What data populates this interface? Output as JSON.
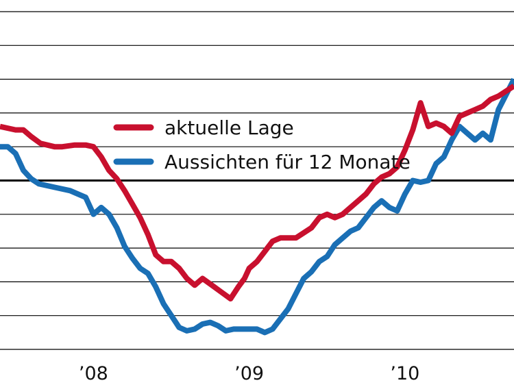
{
  "chart_data": {
    "type": "line",
    "title": "",
    "xlabel": "",
    "ylabel": "",
    "x_tick_labels": [
      "’08",
      "’09",
      "’10"
    ],
    "x_tick_positions": [
      2008.0,
      2009.0,
      2010.0
    ],
    "xlim": [
      2007.4,
      2010.7
    ],
    "ylim": [
      0,
      10
    ],
    "grid": true,
    "reference_line": 5,
    "legend": {
      "placement": "top-center"
    },
    "colors": {
      "aktuelle_lage": "#c8102e",
      "aussichten": "#1a6fb5",
      "grid": "#000000",
      "text": "#111111"
    },
    "series": [
      {
        "name": "aktuelle Lage",
        "key": "aktuelle_lage",
        "x": [
          2007.4,
          2007.5,
          2007.55,
          2007.6,
          2007.66,
          2007.75,
          2007.8,
          2007.88,
          2007.95,
          2008.0,
          2008.05,
          2008.1,
          2008.15,
          2008.2,
          2008.25,
          2008.3,
          2008.35,
          2008.4,
          2008.45,
          2008.5,
          2008.55,
          2008.6,
          2008.65,
          2008.7,
          2008.76,
          2008.82,
          2008.88,
          2008.93,
          2008.97,
          2009.0,
          2009.05,
          2009.1,
          2009.15,
          2009.2,
          2009.25,
          2009.3,
          2009.35,
          2009.4,
          2009.45,
          2009.5,
          2009.55,
          2009.6,
          2009.65,
          2009.7,
          2009.75,
          2009.8,
          2009.85,
          2009.9,
          2009.95,
          2010.0,
          2010.05,
          2010.1,
          2010.15,
          2010.2,
          2010.25,
          2010.3,
          2010.35,
          2010.4,
          2010.45,
          2010.5,
          2010.55,
          2010.6,
          2010.7
        ],
        "values": [
          6.6,
          6.5,
          6.5,
          6.3,
          6.1,
          6.0,
          6.0,
          6.05,
          6.05,
          6.0,
          5.7,
          5.3,
          5.05,
          4.7,
          4.3,
          3.9,
          3.4,
          2.8,
          2.6,
          2.6,
          2.4,
          2.1,
          1.9,
          2.1,
          1.9,
          1.7,
          1.5,
          1.85,
          2.1,
          2.4,
          2.6,
          2.9,
          3.2,
          3.3,
          3.3,
          3.3,
          3.45,
          3.6,
          3.9,
          4.0,
          3.9,
          4.0,
          4.2,
          4.4,
          4.6,
          4.9,
          5.1,
          5.2,
          5.4,
          5.9,
          6.5,
          7.3,
          6.6,
          6.7,
          6.6,
          6.4,
          6.9,
          7.0,
          7.1,
          7.2,
          7.4,
          7.5,
          7.8
        ]
      },
      {
        "name": "Aussichten für 12 Monate",
        "key": "aussichten",
        "x": [
          2007.4,
          2007.45,
          2007.5,
          2007.55,
          2007.6,
          2007.65,
          2007.75,
          2007.85,
          2007.9,
          2007.95,
          2008.0,
          2008.05,
          2008.1,
          2008.15,
          2008.2,
          2008.25,
          2008.3,
          2008.35,
          2008.4,
          2008.45,
          2008.5,
          2008.55,
          2008.6,
          2008.65,
          2008.7,
          2008.75,
          2008.8,
          2008.85,
          2008.9,
          2008.95,
          2009.0,
          2009.05,
          2009.1,
          2009.15,
          2009.2,
          2009.25,
          2009.3,
          2009.35,
          2009.4,
          2009.45,
          2009.5,
          2009.55,
          2009.6,
          2009.65,
          2009.7,
          2009.75,
          2009.8,
          2009.85,
          2009.9,
          2009.95,
          2010.0,
          2010.05,
          2010.1,
          2010.15,
          2010.2,
          2010.25,
          2010.3,
          2010.35,
          2010.4,
          2010.45,
          2010.5,
          2010.55,
          2010.6,
          2010.7
        ],
        "values": [
          6.0,
          6.0,
          5.8,
          5.3,
          5.05,
          4.9,
          4.8,
          4.7,
          4.6,
          4.5,
          4.0,
          4.2,
          4.0,
          3.6,
          3.05,
          2.7,
          2.4,
          2.25,
          1.85,
          1.35,
          1.0,
          0.65,
          0.55,
          0.6,
          0.75,
          0.8,
          0.7,
          0.55,
          0.6,
          0.6,
          0.6,
          0.6,
          0.5,
          0.6,
          0.9,
          1.2,
          1.65,
          2.1,
          2.3,
          2.6,
          2.75,
          3.1,
          3.3,
          3.5,
          3.6,
          3.9,
          4.2,
          4.4,
          4.2,
          4.1,
          4.6,
          5.0,
          4.95,
          5.0,
          5.5,
          5.7,
          6.2,
          6.6,
          6.4,
          6.2,
          6.4,
          6.2,
          7.1,
          8.0
        ]
      }
    ]
  }
}
